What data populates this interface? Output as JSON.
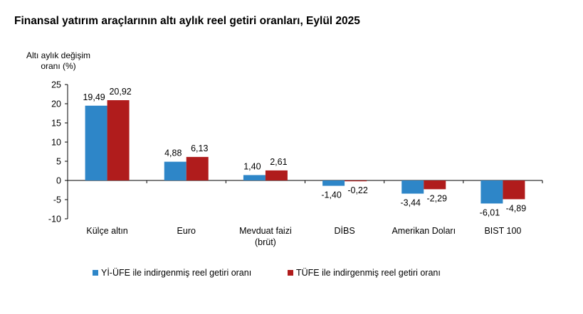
{
  "chart_data": {
    "type": "bar",
    "title": "Finansal yatırım araçlarının altı aylık reel getiri oranları, Eylül 2025",
    "ylabel": [
      "Altı aylık değişim",
      "oranı (%)"
    ],
    "xlabel": "",
    "ylim": [
      -10,
      25
    ],
    "yticks": [
      25,
      20,
      15,
      10,
      5,
      0,
      -5,
      -10
    ],
    "ytick_labels": [
      "25",
      "20",
      "15",
      "10",
      "5",
      "0",
      "-5",
      "-10"
    ],
    "categories": [
      [
        "Külçe altın"
      ],
      [
        "Euro"
      ],
      [
        "Mevduat faizi",
        "(brüt)"
      ],
      [
        "DİBS"
      ],
      [
        "Amerikan Doları"
      ],
      [
        "BIST 100"
      ]
    ],
    "series": [
      {
        "name": "Yİ-ÜFE ile indirgenmiş reel getiri oranı",
        "color": "#2e86c8",
        "values": [
          19.49,
          4.88,
          1.4,
          -1.4,
          -3.44,
          -6.01
        ],
        "labels": [
          "19,49",
          "4,88",
          "1,40",
          "-1,40",
          "-3,44",
          "-6,01"
        ]
      },
      {
        "name": "TÜFE ile indirgenmiş reel getiri oranı",
        "color": "#b01c1c",
        "values": [
          20.92,
          6.13,
          2.61,
          -0.22,
          -2.29,
          -4.89
        ],
        "labels": [
          "20,92",
          "6,13",
          "2,61",
          "-0,22",
          "-2,29",
          "-4,89"
        ]
      }
    ],
    "grid": false,
    "legend_position": "bottom"
  }
}
